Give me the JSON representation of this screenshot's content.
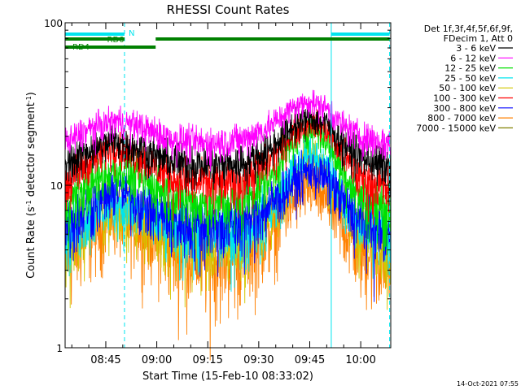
{
  "chart_data": {
    "type": "line",
    "title": "RHESSI Count Rates",
    "xlabel": "Start Time (15-Feb-10 08:33:02)",
    "ylabel": "Count Rate (s⁻¹ detector segment⁻¹)",
    "ylabel_parts": [
      "Count Rate (s",
      "-1",
      " detector segment",
      "-1",
      ")"
    ],
    "y_scale": "log",
    "ylim": [
      1,
      100
    ],
    "y_ticks": [
      1,
      10,
      100
    ],
    "y_tick_labels": [
      "1",
      "10",
      "100"
    ],
    "xlim": [
      "08:33:02",
      "10:08:50"
    ],
    "x_ticks": [
      "08:45",
      "09:00",
      "09:15",
      "09:30",
      "09:45",
      "10:00"
    ],
    "grid": false,
    "legend_position": "right",
    "legend_header": [
      "Det 1f,3f,4f,5f,6f,9f,",
      "FDecim 1, Att 0"
    ],
    "series": [
      {
        "name": "3 - 6 keV",
        "color": "#000000",
        "x": [
          "08:33",
          "08:40",
          "08:48",
          "08:55",
          "09:05",
          "09:15",
          "09:25",
          "09:33",
          "09:40",
          "09:45",
          "09:50",
          "09:55",
          "10:00",
          "10:08"
        ],
        "values": [
          13.5,
          16.5,
          19,
          16.8,
          14,
          13.3,
          13.6,
          16.5,
          23,
          26,
          24,
          18,
          15,
          13
        ]
      },
      {
        "name": "6 - 12 keV",
        "color": "#ff00ff",
        "x": [
          "08:33",
          "08:40",
          "08:48",
          "08:55",
          "09:05",
          "09:15",
          "09:25",
          "09:33",
          "09:40",
          "09:45",
          "09:50",
          "09:55",
          "10:00",
          "10:08"
        ],
        "values": [
          18,
          22,
          25,
          23,
          19,
          18,
          19,
          23,
          30,
          33,
          30,
          23,
          20,
          18
        ]
      },
      {
        "name": "12 - 25 keV",
        "color": "#00e000",
        "x": [
          "08:33",
          "08:40",
          "08:48",
          "08:55",
          "09:05",
          "09:15",
          "09:25",
          "09:33",
          "09:40",
          "09:45",
          "09:50",
          "09:55",
          "10:00",
          "10:08"
        ],
        "values": [
          7.5,
          10,
          12.5,
          11,
          8.5,
          7.5,
          8,
          11,
          18,
          23,
          19,
          12,
          8.5,
          7
        ]
      },
      {
        "name": "25 - 50 keV",
        "color": "#00e5ee",
        "x": [
          "08:33",
          "08:40",
          "08:48",
          "08:55",
          "09:05",
          "09:15",
          "09:25",
          "09:33",
          "09:40",
          "09:45",
          "09:50",
          "09:55",
          "10:00",
          "10:08"
        ],
        "values": [
          5,
          6.5,
          8,
          7,
          5.5,
          5,
          5.3,
          7,
          12,
          16,
          13,
          8.5,
          6,
          5
        ]
      },
      {
        "name": "50 - 100 keV",
        "color": "#d2c800",
        "x": [
          "08:33",
          "08:40",
          "08:48",
          "08:55",
          "09:05",
          "09:15",
          "09:25",
          "09:33",
          "09:40",
          "09:45",
          "09:50",
          "09:55",
          "10:00",
          "10:08"
        ],
        "values": [
          4.5,
          6,
          7.5,
          6.5,
          5,
          4.5,
          4.8,
          6.5,
          11,
          15,
          12,
          7.5,
          5.5,
          4.5
        ]
      },
      {
        "name": "100 - 300 keV",
        "color": "#ff0000",
        "x": [
          "08:33",
          "08:40",
          "08:48",
          "08:55",
          "09:05",
          "09:15",
          "09:25",
          "09:33",
          "09:40",
          "09:45",
          "09:50",
          "09:55",
          "10:00",
          "10:08"
        ],
        "values": [
          10,
          14,
          17.5,
          15,
          11,
          10.2,
          10.5,
          14,
          21,
          25,
          22,
          15,
          11,
          9.5
        ]
      },
      {
        "name": "300 - 800 keV",
        "color": "#0000ff",
        "x": [
          "08:33",
          "08:40",
          "08:48",
          "08:55",
          "09:05",
          "09:15",
          "09:25",
          "09:33",
          "09:40",
          "09:45",
          "09:50",
          "09:55",
          "10:00",
          "10:08"
        ],
        "values": [
          5.5,
          7.5,
          9.5,
          8,
          6,
          5.6,
          5.8,
          7.5,
          10.5,
          12.5,
          11,
          8,
          6,
          5
        ]
      },
      {
        "name": "800 - 7000 keV",
        "color": "#ff8000",
        "x": [
          "08:33",
          "08:40",
          "08:48",
          "08:55",
          "09:05",
          "09:15",
          "09:25",
          "09:33",
          "09:40",
          "09:45",
          "09:50",
          "09:55",
          "10:00",
          "10:08"
        ],
        "values": [
          3.5,
          5,
          6.5,
          5.5,
          4,
          3.5,
          3.8,
          5,
          8,
          9.5,
          8,
          5.5,
          4,
          3.3
        ]
      },
      {
        "name": "7000 - 15000 keV",
        "color": "#808000",
        "x": [],
        "values": []
      }
    ],
    "vertical_lines": [
      {
        "x": "08:33:02",
        "color": "#00e5ee",
        "style": "solid"
      },
      {
        "x": "08:50:30",
        "color": "#00e5ee",
        "style": "dashed"
      },
      {
        "x": "09:51:20",
        "color": "#00e5ee",
        "style": "solid"
      },
      {
        "x": "10:08:30",
        "color": "#00e5ee",
        "style": "dashed"
      }
    ],
    "flag_bars": [
      {
        "label": "",
        "color": "#00e5ee",
        "segments": [
          [
            "08:33:02",
            "08:50:30"
          ],
          [
            "09:51:20",
            "10:08:30"
          ]
        ],
        "row": 1
      },
      {
        "label": "N",
        "color": "#00e5ee",
        "segments": [],
        "row": 1
      },
      {
        "label": "RD0",
        "color": "#008000",
        "segments": [
          [
            "08:33:02",
            "08:50:30"
          ],
          [
            "08:59:40",
            "10:08:30"
          ]
        ],
        "row": 2
      },
      {
        "label": "RD4",
        "color": "#008000",
        "segments": [
          [
            "08:33:02",
            "08:59:40"
          ]
        ],
        "row": 3
      }
    ],
    "timestamp": "14-Oct-2021 07:55"
  }
}
